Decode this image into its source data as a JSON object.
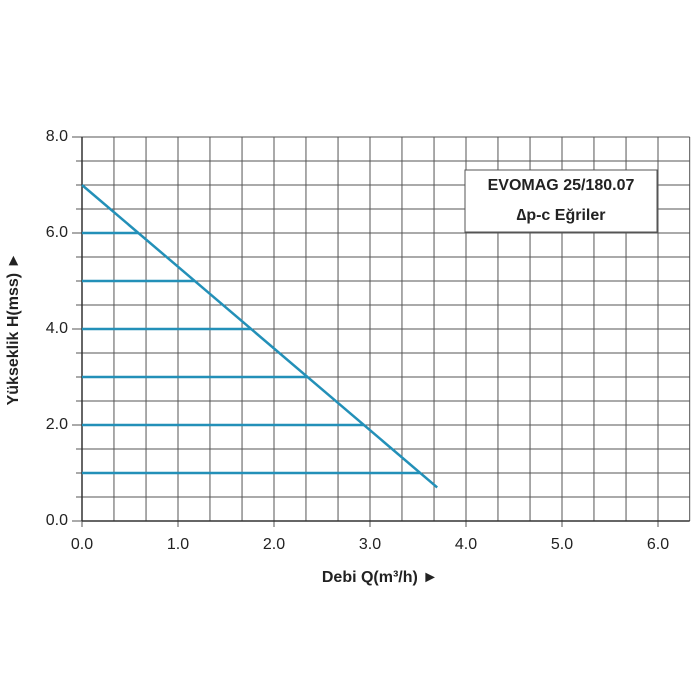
{
  "chart_data": {
    "type": "line",
    "title": "EVOMAG 25/180.07",
    "subtitle": "∆p-c Eğriler",
    "x_label": "Debi Q(m³/h) ►",
    "y_label": "Yükseklik H(mss) ►",
    "xlim": [
      0,
      6.33
    ],
    "ylim": [
      0,
      8
    ],
    "xticks": [
      {
        "value": 0,
        "label": "0.0"
      },
      {
        "value": 1,
        "label": "1.0"
      },
      {
        "value": 2,
        "label": "2.0"
      },
      {
        "value": 3,
        "label": "3.0"
      },
      {
        "value": 4,
        "label": "4.0"
      },
      {
        "value": 5,
        "label": "5.0"
      },
      {
        "value": 6,
        "label": "6.0"
      }
    ],
    "yticks": [
      {
        "value": 0,
        "label": "0.0"
      },
      {
        "value": 2,
        "label": "2.0"
      },
      {
        "value": 4,
        "label": "4.0"
      },
      {
        "value": 6,
        "label": "6.0"
      },
      {
        "value": 8,
        "label": "8.0"
      }
    ],
    "xgrid": [
      0.333,
      0.667,
      1,
      1.333,
      1.667,
      2,
      2.333,
      2.667,
      3,
      3.333,
      3.667,
      4,
      4.333,
      4.667,
      5,
      5.333,
      5.667,
      6
    ],
    "ygrid": [
      0.5,
      1,
      1.5,
      2,
      2.5,
      3,
      3.5,
      4,
      4.5,
      5,
      5.5,
      6,
      6.5,
      7,
      7.5
    ],
    "grid": true,
    "series": [
      {
        "color": "#2390b8",
        "x": [
          0,
          3.7
        ],
        "values": [
          7,
          0.7
        ]
      },
      {
        "color": "#2390b8",
        "x": [
          0,
          0.59
        ],
        "values": [
          6,
          6
        ]
      },
      {
        "color": "#2390b8",
        "x": [
          0,
          1.17
        ],
        "values": [
          5,
          5
        ]
      },
      {
        "color": "#2390b8",
        "x": [
          0,
          1.76
        ],
        "values": [
          4,
          4
        ]
      },
      {
        "color": "#2390b8",
        "x": [
          0,
          2.35
        ],
        "values": [
          3,
          3
        ]
      },
      {
        "color": "#2390b8",
        "x": [
          0,
          2.94
        ],
        "values": [
          2,
          2
        ]
      },
      {
        "color": "#2390b8",
        "x": [
          0,
          3.52
        ],
        "values": [
          1,
          1
        ]
      }
    ]
  }
}
